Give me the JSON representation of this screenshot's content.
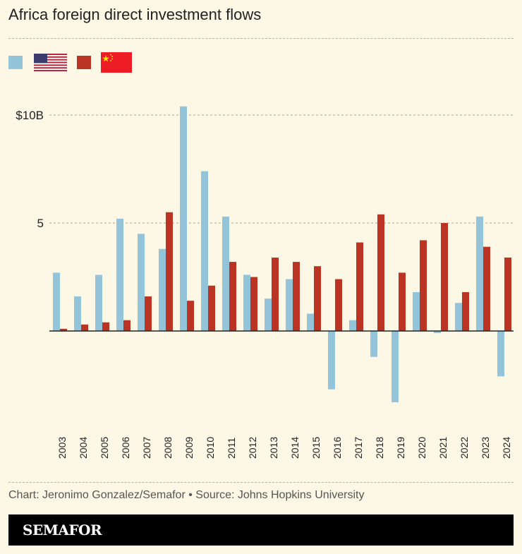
{
  "title": "Africa foreign direct investment flows",
  "legend": [
    {
      "name": "United States",
      "color": "#93c4da",
      "icon": "us-flag-icon"
    },
    {
      "name": "China",
      "color": "#bb3322",
      "icon": "china-flag-icon"
    }
  ],
  "chart_data": {
    "type": "bar",
    "title": "Africa foreign direct investment flows",
    "categories": [
      "2003",
      "2004",
      "2005",
      "2006",
      "2007",
      "2008",
      "2009",
      "2010",
      "2011",
      "2012",
      "2013",
      "2014",
      "2015",
      "2016",
      "2017",
      "2018",
      "2019",
      "2020",
      "2021",
      "2022",
      "2023",
      "2024"
    ],
    "series": [
      {
        "name": "United States",
        "color": "#93c4da",
        "values": [
          2.7,
          1.6,
          2.6,
          5.2,
          4.5,
          3.8,
          10.4,
          7.4,
          5.3,
          2.6,
          1.5,
          2.4,
          0.8,
          -2.7,
          0.5,
          -1.2,
          -3.3,
          1.8,
          -0.1,
          1.3,
          5.3,
          -2.1
        ]
      },
      {
        "name": "China",
        "color": "#bb3322",
        "values": [
          0.1,
          0.3,
          0.4,
          0.5,
          1.6,
          5.5,
          1.4,
          2.1,
          3.2,
          2.5,
          3.4,
          3.2,
          3.0,
          2.4,
          4.1,
          5.4,
          2.7,
          4.2,
          5.0,
          1.8,
          3.9,
          3.4
        ]
      }
    ],
    "yticks": [
      {
        "value": 10,
        "label": "$10B"
      },
      {
        "value": 5,
        "label": "5"
      }
    ],
    "ylim": [
      -4.5,
      10.4
    ],
    "grid": true,
    "legend_position": "top-left"
  },
  "footer": "Chart: Jeronimo Gonzalez/Semafor • Source: Johns Hopkins University",
  "brand": "SEMAFOR"
}
